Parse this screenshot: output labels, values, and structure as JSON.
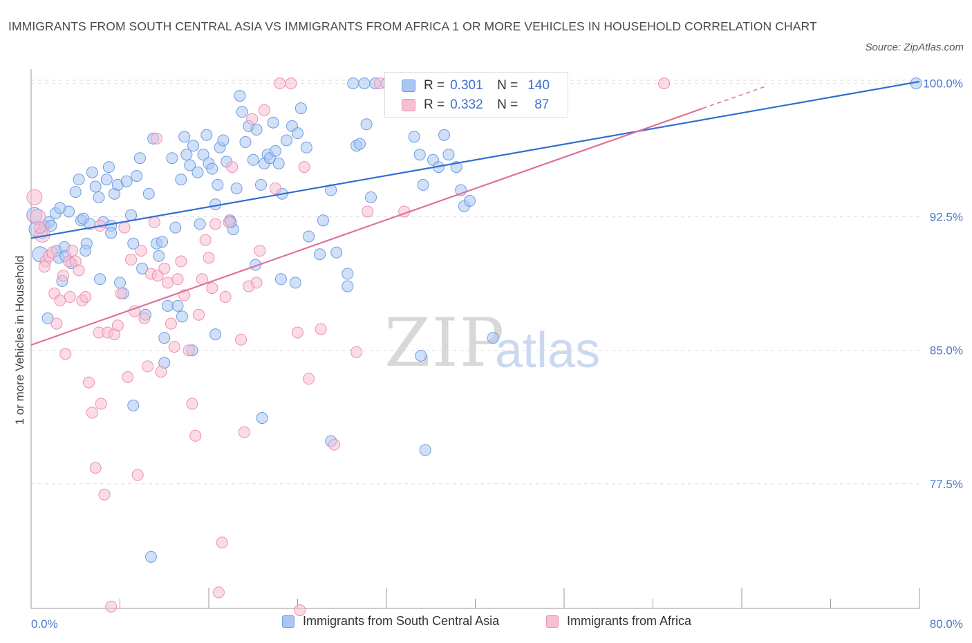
{
  "title": "IMMIGRANTS FROM SOUTH CENTRAL ASIA VS IMMIGRANTS FROM AFRICA 1 OR MORE VEHICLES IN HOUSEHOLD CORRELATION CHART",
  "source": "Source: ZipAtlas.com",
  "watermark": {
    "zip": "ZIP",
    "atlas": "atlas"
  },
  "colors": {
    "blue_fill": "#a9c7f2",
    "blue_stroke": "#6f9be0",
    "blue_line": "#2f6fd0",
    "pink_fill": "#f7bfd2",
    "pink_stroke": "#ee8fb0",
    "pink_line": "#e0709a",
    "tick": "#4a78c8",
    "grid": "#dddddd"
  },
  "stats": {
    "blue": {
      "r_label": "R =",
      "r_value": "0.301",
      "n_label": "N =",
      "n_value": "140"
    },
    "pink": {
      "r_label": "R =",
      "r_value": "0.332",
      "n_label": "N =",
      "n_value": "87"
    }
  },
  "legend": {
    "blue": "Immigrants from South Central Asia",
    "pink": "Immigrants from Africa"
  },
  "chart_data": {
    "type": "scatter",
    "xlabel": "",
    "ylabel": "1 or more Vehicles in Household",
    "xlim": [
      0,
      80
    ],
    "ylim": [
      70.5,
      100.8
    ],
    "y_ticks": [
      {
        "v": 100,
        "label": "100.0%"
      },
      {
        "v": 92.5,
        "label": "92.5%"
      },
      {
        "v": 85,
        "label": "85.0%"
      },
      {
        "v": 77.5,
        "label": "77.5%"
      }
    ],
    "x_tick_labels": [
      {
        "v": 0,
        "label": "0.0%"
      },
      {
        "v": 80,
        "label": "80.0%"
      }
    ],
    "x_minor_ticks": [
      8,
      16,
      24,
      32,
      40,
      48,
      56,
      64,
      72,
      80
    ],
    "grid": true,
    "legend_position": "bottom-center",
    "series": [
      {
        "name": "Immigrants from South Central Asia",
        "color": "blue",
        "trend": {
          "x1": 0,
          "y1": 91.3,
          "x2": 80,
          "y2": 100.1
        },
        "points": [
          [
            0.3,
            92.6
          ],
          [
            0.5,
            91.8
          ],
          [
            0.8,
            90.4
          ],
          [
            1.0,
            91.6
          ],
          [
            1.2,
            92.0
          ],
          [
            1.5,
            86.8
          ],
          [
            1.6,
            92.2
          ],
          [
            1.8,
            92.0
          ],
          [
            2.2,
            92.7
          ],
          [
            2.3,
            90.6
          ],
          [
            2.5,
            90.2
          ],
          [
            2.8,
            88.9
          ],
          [
            3.0,
            90.8
          ],
          [
            3.1,
            90.3
          ],
          [
            3.4,
            92.8
          ],
          [
            3.6,
            89.9
          ],
          [
            4.0,
            93.9
          ],
          [
            4.3,
            94.6
          ],
          [
            4.5,
            92.3
          ],
          [
            4.7,
            92.4
          ],
          [
            5.0,
            91.0
          ],
          [
            5.3,
            92.1
          ],
          [
            5.5,
            95.0
          ],
          [
            5.8,
            94.2
          ],
          [
            6.1,
            93.6
          ],
          [
            6.2,
            89.0
          ],
          [
            6.5,
            92.2
          ],
          [
            6.8,
            94.6
          ],
          [
            7.0,
            95.3
          ],
          [
            7.2,
            92.0
          ],
          [
            7.5,
            93.8
          ],
          [
            7.8,
            94.3
          ],
          [
            8.0,
            88.8
          ],
          [
            8.3,
            88.2
          ],
          [
            8.6,
            94.5
          ],
          [
            9.0,
            92.6
          ],
          [
            9.2,
            91.0
          ],
          [
            9.5,
            94.8
          ],
          [
            9.8,
            95.8
          ],
          [
            10.0,
            89.6
          ],
          [
            10.3,
            87.0
          ],
          [
            10.6,
            93.8
          ],
          [
            11.0,
            96.9
          ],
          [
            11.3,
            91.0
          ],
          [
            11.5,
            90.3
          ],
          [
            11.8,
            91.1
          ],
          [
            12.0,
            85.7
          ],
          [
            12.3,
            87.5
          ],
          [
            12.7,
            95.8
          ],
          [
            13.0,
            91.9
          ],
          [
            13.2,
            87.5
          ],
          [
            13.5,
            94.6
          ],
          [
            13.8,
            97.0
          ],
          [
            14.0,
            96.0
          ],
          [
            14.3,
            95.4
          ],
          [
            14.6,
            96.5
          ],
          [
            15.0,
            95.0
          ],
          [
            15.2,
            92.1
          ],
          [
            15.5,
            96.0
          ],
          [
            15.8,
            97.1
          ],
          [
            16.0,
            95.5
          ],
          [
            16.3,
            95.2
          ],
          [
            16.6,
            93.2
          ],
          [
            16.8,
            94.3
          ],
          [
            17.0,
            96.4
          ],
          [
            17.3,
            96.8
          ],
          [
            17.6,
            95.6
          ],
          [
            17.9,
            92.3
          ],
          [
            18.2,
            91.8
          ],
          [
            18.5,
            94.1
          ],
          [
            18.8,
            99.3
          ],
          [
            19.0,
            98.4
          ],
          [
            19.3,
            96.7
          ],
          [
            19.6,
            97.6
          ],
          [
            20.0,
            95.7
          ],
          [
            20.3,
            97.4
          ],
          [
            20.7,
            94.3
          ],
          [
            21.0,
            95.5
          ],
          [
            21.3,
            96.0
          ],
          [
            21.5,
            95.8
          ],
          [
            21.8,
            97.8
          ],
          [
            22.0,
            96.2
          ],
          [
            22.3,
            95.5
          ],
          [
            22.6,
            93.8
          ],
          [
            23.0,
            96.8
          ],
          [
            23.5,
            97.6
          ],
          [
            24.0,
            97.2
          ],
          [
            24.3,
            98.6
          ],
          [
            24.8,
            96.4
          ],
          [
            25.0,
            91.4
          ],
          [
            26.3,
            92.3
          ],
          [
            27.0,
            94.0
          ],
          [
            27.5,
            90.5
          ],
          [
            28.5,
            89.3
          ],
          [
            29.0,
            100.0
          ],
          [
            29.3,
            96.5
          ],
          [
            29.6,
            96.6
          ],
          [
            30.0,
            100.0
          ],
          [
            30.2,
            97.7
          ],
          [
            30.6,
            93.6
          ],
          [
            31.0,
            100.0
          ],
          [
            32.0,
            100.0
          ],
          [
            33.0,
            100.0
          ],
          [
            34.0,
            100.0
          ],
          [
            34.5,
            97.0
          ],
          [
            35.0,
            96.0
          ],
          [
            35.3,
            94.3
          ],
          [
            35.8,
            100.0
          ],
          [
            36.2,
            95.7
          ],
          [
            36.7,
            95.3
          ],
          [
            37.2,
            97.1
          ],
          [
            37.6,
            96.0
          ],
          [
            38.0,
            100.0
          ],
          [
            38.3,
            95.3
          ],
          [
            38.7,
            94.0
          ],
          [
            39.0,
            93.1
          ],
          [
            39.5,
            93.4
          ],
          [
            40.0,
            100.0
          ],
          [
            41.6,
            85.7
          ],
          [
            41.0,
            100.0
          ],
          [
            7.2,
            91.6
          ],
          [
            9.2,
            81.9
          ],
          [
            10.8,
            73.4
          ],
          [
            12.0,
            84.3
          ],
          [
            14.5,
            85.0
          ],
          [
            16.6,
            85.9
          ],
          [
            18.0,
            92.2
          ],
          [
            20.2,
            89.8
          ],
          [
            20.8,
            81.2
          ],
          [
            22.5,
            89.0
          ],
          [
            23.8,
            88.8
          ],
          [
            26.0,
            90.4
          ],
          [
            27.0,
            79.9
          ],
          [
            28.5,
            88.6
          ],
          [
            35.1,
            84.7
          ],
          [
            35.5,
            79.4
          ],
          [
            79.7,
            100.0
          ],
          [
            2.6,
            93.0
          ],
          [
            4.9,
            90.6
          ],
          [
            13.6,
            86.9
          ]
        ]
      },
      {
        "name": "Immigrants from Africa",
        "color": "pink",
        "trend": {
          "x1": 0,
          "y1": 85.3,
          "x2": 60.5,
          "y2": 98.6
        },
        "trend_dash": {
          "x1": 60.5,
          "y1": 98.6,
          "x2": 66,
          "y2": 99.8
        },
        "points": [
          [
            0.3,
            93.6
          ],
          [
            0.6,
            92.5
          ],
          [
            1.0,
            91.5
          ],
          [
            1.3,
            90.0
          ],
          [
            1.6,
            90.3
          ],
          [
            1.9,
            90.5
          ],
          [
            2.1,
            88.2
          ],
          [
            2.3,
            86.5
          ],
          [
            2.6,
            87.8
          ],
          [
            2.9,
            89.2
          ],
          [
            3.1,
            84.8
          ],
          [
            3.4,
            90.0
          ],
          [
            3.7,
            90.6
          ],
          [
            4.0,
            90.0
          ],
          [
            4.3,
            89.5
          ],
          [
            4.6,
            87.8
          ],
          [
            4.9,
            88.0
          ],
          [
            5.2,
            83.2
          ],
          [
            5.5,
            81.5
          ],
          [
            5.8,
            78.4
          ],
          [
            6.1,
            86.0
          ],
          [
            6.3,
            82.0
          ],
          [
            6.6,
            76.9
          ],
          [
            6.9,
            86.0
          ],
          [
            7.2,
            70.6
          ],
          [
            7.5,
            85.9
          ],
          [
            7.8,
            86.4
          ],
          [
            8.1,
            88.2
          ],
          [
            8.4,
            91.9
          ],
          [
            8.7,
            83.5
          ],
          [
            9.0,
            90.1
          ],
          [
            9.3,
            87.2
          ],
          [
            9.6,
            78.0
          ],
          [
            9.9,
            90.6
          ],
          [
            10.2,
            86.8
          ],
          [
            10.5,
            84.1
          ],
          [
            10.8,
            89.3
          ],
          [
            11.1,
            92.2
          ],
          [
            11.4,
            89.2
          ],
          [
            11.7,
            83.8
          ],
          [
            12.0,
            89.6
          ],
          [
            12.3,
            88.8
          ],
          [
            12.6,
            86.5
          ],
          [
            12.9,
            85.2
          ],
          [
            13.2,
            89.0
          ],
          [
            13.5,
            90.0
          ],
          [
            13.8,
            88.1
          ],
          [
            14.2,
            85.0
          ],
          [
            14.5,
            82.0
          ],
          [
            14.8,
            80.2
          ],
          [
            15.1,
            87.0
          ],
          [
            15.4,
            89.0
          ],
          [
            15.7,
            91.2
          ],
          [
            16.0,
            90.2
          ],
          [
            16.3,
            88.5
          ],
          [
            16.6,
            92.1
          ],
          [
            16.9,
            71.4
          ],
          [
            17.2,
            74.2
          ],
          [
            17.5,
            88.0
          ],
          [
            17.8,
            92.2
          ],
          [
            18.1,
            95.3
          ],
          [
            18.9,
            85.6
          ],
          [
            19.2,
            80.4
          ],
          [
            19.6,
            88.6
          ],
          [
            19.9,
            98.0
          ],
          [
            20.3,
            88.8
          ],
          [
            20.6,
            90.6
          ],
          [
            21.0,
            98.5
          ],
          [
            22.0,
            94.1
          ],
          [
            22.4,
            100.0
          ],
          [
            23.4,
            100.0
          ],
          [
            24.0,
            86.0
          ],
          [
            24.6,
            95.3
          ],
          [
            25.0,
            83.4
          ],
          [
            26.1,
            86.2
          ],
          [
            27.3,
            79.7
          ],
          [
            29.3,
            84.9
          ],
          [
            30.3,
            92.8
          ],
          [
            31.4,
            100.0
          ],
          [
            33.6,
            92.8
          ],
          [
            57.0,
            100.0
          ],
          [
            24.2,
            70.4
          ],
          [
            11.3,
            96.9
          ],
          [
            3.5,
            88.0
          ],
          [
            6.2,
            92.0
          ],
          [
            0.8,
            91.9
          ],
          [
            1.2,
            89.7
          ]
        ]
      }
    ]
  }
}
